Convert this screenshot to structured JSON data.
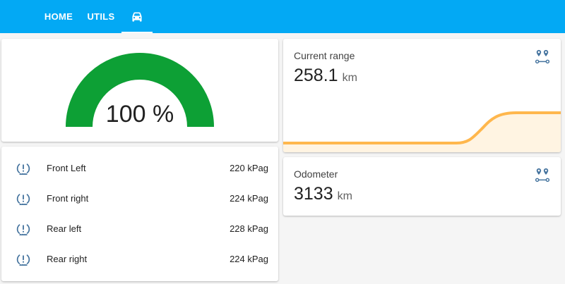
{
  "nav": {
    "tabs": [
      {
        "label": "HOME"
      },
      {
        "label": "UTILS"
      },
      {
        "icon": "car-icon",
        "active": true
      }
    ]
  },
  "gauge": {
    "value_text": "100 %",
    "percent": 100,
    "color": "#0da035"
  },
  "tires": [
    {
      "label": "Front Left",
      "value": "220 kPag",
      "icon": "tire-alert-icon"
    },
    {
      "label": "Front right",
      "value": "224 kPag",
      "icon": "tire-alert-icon"
    },
    {
      "label": "Rear left",
      "value": "228 kPag",
      "icon": "tire-alert-icon"
    },
    {
      "label": "Rear right",
      "value": "224 kPag",
      "icon": "tire-alert-icon"
    }
  ],
  "range": {
    "title": "Current range",
    "value": "258.1",
    "unit": "km",
    "icon": "map-marker-distance-icon",
    "line_color": "#ffb74d"
  },
  "odometer": {
    "title": "Odometer",
    "value": "3133",
    "unit": "km",
    "icon": "map-marker-distance-icon"
  },
  "colors": {
    "header": "#03a9f4",
    "icon": "#44739e"
  }
}
